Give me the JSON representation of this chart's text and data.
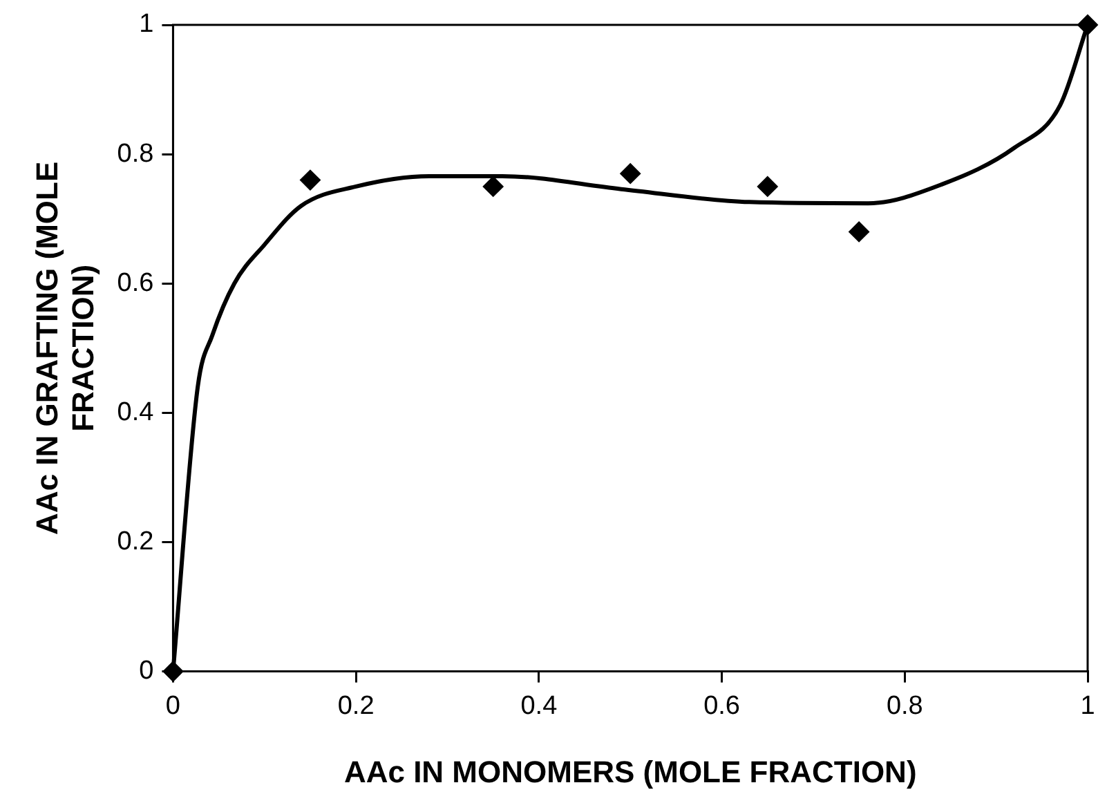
{
  "chart_data": {
    "type": "scatter",
    "xlabel": "AAc IN MONOMERS (MOLE FRACTION)",
    "ylabel": "AAc IN GRAFTING (MOLE FRACTION)",
    "xlim": [
      0,
      1
    ],
    "ylim": [
      0,
      1
    ],
    "xticks": [
      0,
      0.2,
      0.4,
      0.6,
      0.8,
      1
    ],
    "yticks": [
      0,
      0.2,
      0.4,
      0.6,
      0.8,
      1
    ],
    "grid": false,
    "legend": false,
    "series": [
      {
        "color": "#000000",
        "marker": "diamond",
        "x": [
          0,
          0.15,
          0.35,
          0.5,
          0.65,
          0.75,
          1
        ],
        "values": [
          0,
          0.76,
          0.75,
          0.77,
          0.75,
          0.68,
          1
        ]
      },
      {
        "type": "line",
        "color": "#000000",
        "marker": "none",
        "line_style": "solid",
        "x": [
          0,
          0.027,
          0.043,
          0.067,
          0.1,
          0.14,
          0.2,
          0.28,
          0.36,
          0.49,
          0.63,
          0.76,
          0.84,
          0.92,
          0.97,
          1
        ],
        "values": [
          0,
          0.44,
          0.52,
          0.6,
          0.66,
          0.72,
          0.75,
          0.766,
          0.766,
          0.746,
          0.726,
          0.724,
          0.753,
          0.81,
          0.876,
          1
        ]
      }
    ]
  }
}
